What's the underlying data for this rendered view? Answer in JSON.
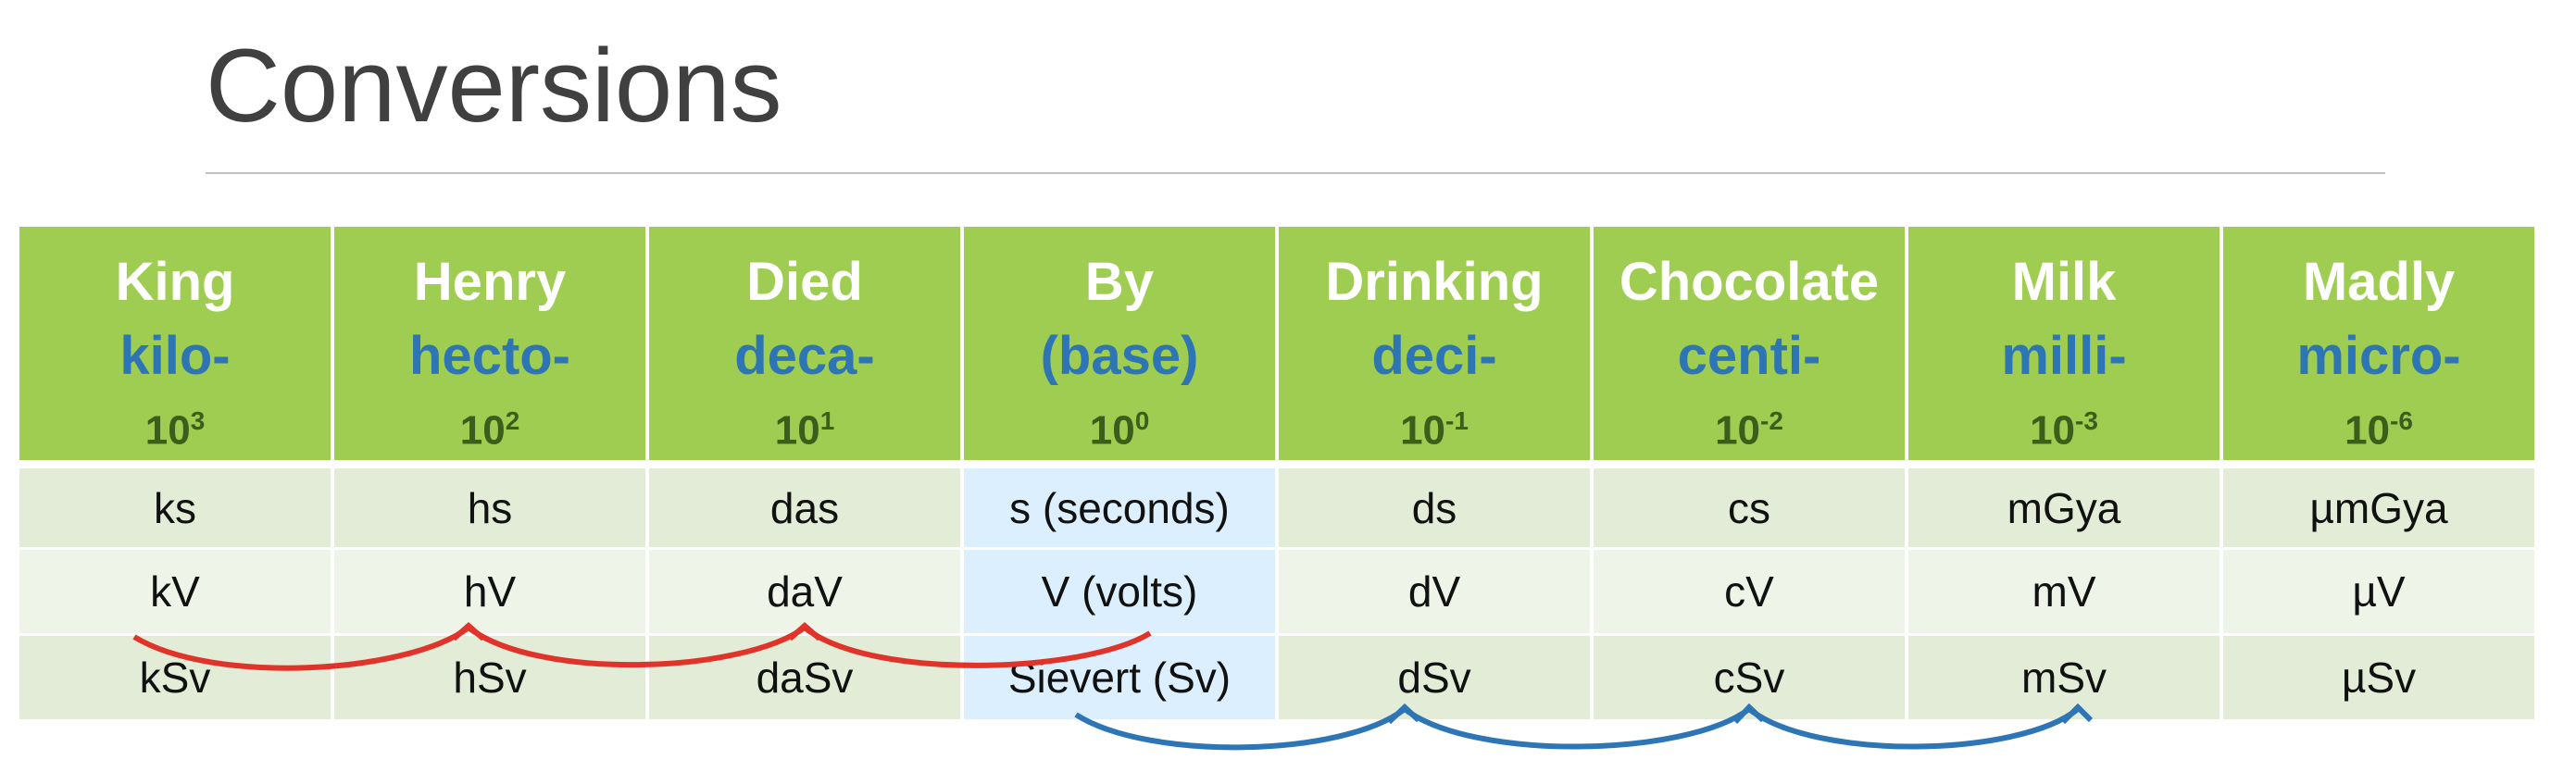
{
  "title": "Conversions",
  "header": [
    {
      "word": "King",
      "prefix": "kilo-",
      "power": {
        "base": "10",
        "exp": "3"
      }
    },
    {
      "word": "Henry",
      "prefix": "hecto-",
      "power": {
        "base": "10",
        "exp": "2"
      }
    },
    {
      "word": "Died",
      "prefix": "deca-",
      "power": {
        "base": "10",
        "exp": "1"
      }
    },
    {
      "word": "By",
      "prefix": "(base)",
      "power": {
        "base": "10",
        "exp": "0"
      }
    },
    {
      "word": "Drinking",
      "prefix": "deci-",
      "power": {
        "base": "10",
        "exp": "-1"
      }
    },
    {
      "word": "Chocolate",
      "prefix": "centi-",
      "power": {
        "base": "10",
        "exp": "-2"
      }
    },
    {
      "word": "Milk",
      "prefix": "milli-",
      "power": {
        "base": "10",
        "exp": "-3"
      }
    },
    {
      "word": "Madly",
      "prefix": "micro-",
      "power": {
        "base": "10",
        "exp": "-6"
      }
    }
  ],
  "table": {
    "rows": [
      [
        "ks",
        "hs",
        "das",
        "s (seconds)",
        "ds",
        "cs",
        "mGya",
        "µmGya"
      ],
      [
        "kV",
        "hV",
        "daV",
        "V (volts)",
        "dV",
        "cV",
        "mV",
        "µV"
      ],
      [
        "kSv",
        "hSv",
        "daSv",
        "Sievert (Sv)",
        "dSv",
        "cSv",
        "mSv",
        "µSv"
      ]
    ]
  }
}
